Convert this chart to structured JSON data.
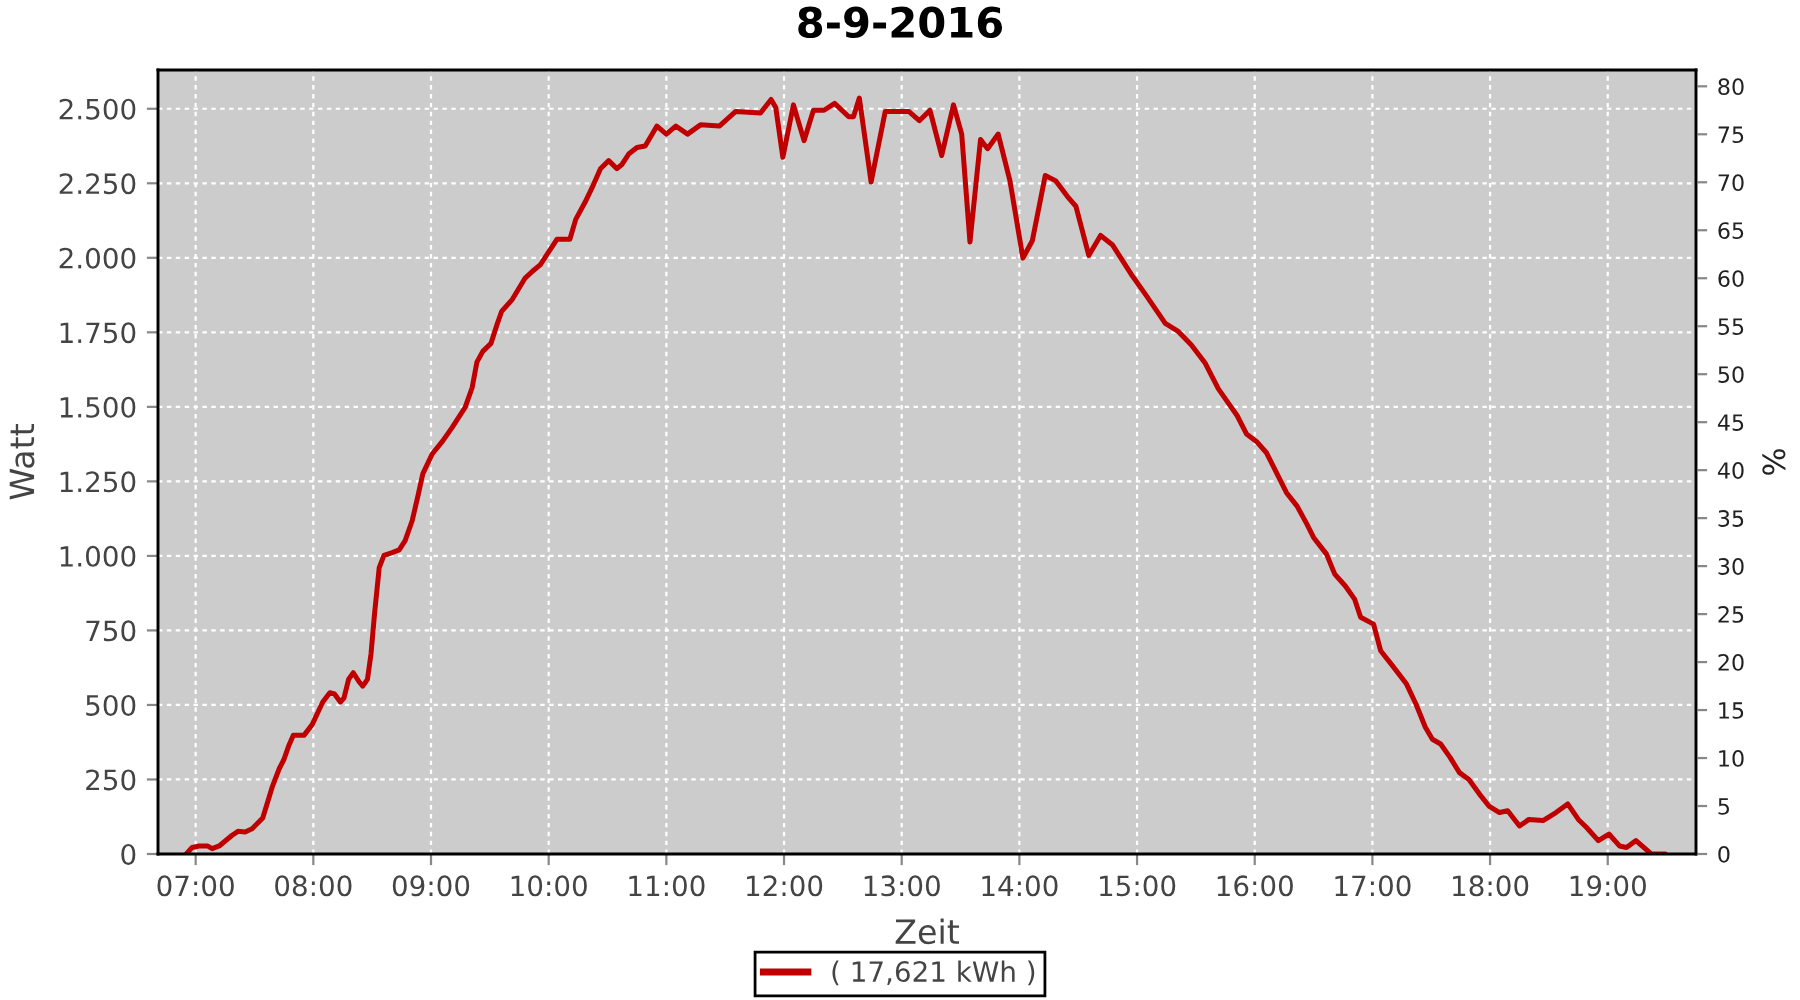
{
  "chart_data": {
    "type": "line",
    "title": "8-9-2016",
    "xlabel": "Zeit",
    "ylabel": "Watt",
    "y2label": "%",
    "xlim": [
      6.68,
      19.75
    ],
    "xticks": [
      {
        "value": 7,
        "label": "07:00"
      },
      {
        "value": 8,
        "label": "08:00"
      },
      {
        "value": 9,
        "label": "09:00"
      },
      {
        "value": 10,
        "label": "10:00"
      },
      {
        "value": 11,
        "label": "11:00"
      },
      {
        "value": 12,
        "label": "12:00"
      },
      {
        "value": 13,
        "label": "13:00"
      },
      {
        "value": 14,
        "label": "14:00"
      },
      {
        "value": 15,
        "label": "15:00"
      },
      {
        "value": 16,
        "label": "16:00"
      },
      {
        "value": 17,
        "label": "17:00"
      },
      {
        "value": 18,
        "label": "18:00"
      },
      {
        "value": 19,
        "label": "19:00"
      }
    ],
    "ylim": [
      0,
      2630
    ],
    "yticks": [
      0,
      250,
      500,
      750,
      {
        "value": 1000,
        "label": "1.000"
      },
      {
        "value": 1250,
        "label": "1.250"
      },
      {
        "value": 1500,
        "label": "1.500"
      },
      {
        "value": 1750,
        "label": "1.750"
      },
      {
        "value": 2000,
        "label": "2.000"
      },
      {
        "value": 2250,
        "label": "2.250"
      },
      {
        "value": 2500,
        "label": "2.500"
      }
    ],
    "y2lim": [
      0,
      81.7
    ],
    "y2ticks": [
      0,
      5,
      10,
      15,
      20,
      25,
      30,
      35,
      40,
      45,
      50,
      55,
      60,
      65,
      70,
      75,
      80
    ],
    "grid": true,
    "legend": "bottom",
    "line_style": "solid",
    "series": [
      {
        "name": "( 17,621 kWh )",
        "color": "#c00000",
        "x": [
          6.92,
          6.97,
          7.03,
          7.1,
          7.14,
          7.2,
          7.31,
          7.36,
          7.42,
          7.48,
          7.57,
          7.65,
          7.71,
          7.75,
          7.79,
          7.83,
          7.92,
          7.99,
          8.08,
          8.14,
          8.18,
          8.23,
          8.26,
          8.3,
          8.34,
          8.39,
          8.42,
          8.46,
          8.49,
          8.52,
          8.56,
          8.6,
          8.67,
          8.73,
          8.78,
          8.84,
          8.89,
          8.93,
          9.01,
          9.1,
          9.18,
          9.29,
          9.35,
          9.39,
          9.44,
          9.51,
          9.56,
          9.6,
          9.69,
          9.8,
          9.86,
          9.93,
          10.01,
          10.07,
          10.18,
          10.23,
          10.31,
          10.37,
          10.44,
          10.51,
          10.58,
          10.62,
          10.68,
          10.75,
          10.82,
          10.92,
          11.0,
          11.08,
          11.18,
          11.29,
          11.45,
          11.59,
          11.8,
          11.89,
          11.93,
          11.99,
          12.08,
          12.17,
          12.25,
          12.34,
          12.43,
          12.55,
          12.59,
          12.64,
          12.74,
          12.86,
          13.06,
          13.15,
          13.24,
          13.34,
          13.44,
          13.51,
          13.58,
          13.67,
          13.73,
          13.82,
          13.92,
          14.03,
          14.11,
          14.22,
          14.31,
          14.42,
          14.48,
          14.59,
          14.69,
          14.79,
          14.95,
          15.07,
          15.24,
          15.35,
          15.46,
          15.58,
          15.69,
          15.77,
          15.85,
          15.93,
          16.02,
          16.1,
          16.19,
          16.27,
          16.36,
          16.44,
          16.5,
          16.61,
          16.68,
          16.77,
          16.85,
          16.9,
          17.01,
          17.07,
          17.16,
          17.29,
          17.37,
          17.45,
          17.51,
          17.58,
          17.66,
          17.74,
          17.82,
          17.91,
          17.99,
          18.08,
          18.15,
          18.25,
          18.33,
          18.45,
          18.56,
          18.66,
          18.75,
          18.82,
          18.92,
          19.01,
          19.1,
          19.16,
          19.24,
          19.37,
          19.49
        ],
        "values": [
          0,
          22,
          27,
          27,
          18,
          27,
          63,
          76,
          74,
          85,
          121,
          224,
          286,
          317,
          362,
          398,
          398,
          434,
          510,
          541,
          537,
          510,
          523,
          586,
          608,
          577,
          563,
          586,
          671,
          805,
          961,
          1002,
          1011,
          1020,
          1051,
          1118,
          1203,
          1275,
          1342,
          1386,
          1431,
          1498,
          1565,
          1650,
          1686,
          1713,
          1775,
          1820,
          1860,
          1932,
          1954,
          1977,
          2026,
          2062,
          2062,
          2129,
          2187,
          2236,
          2299,
          2326,
          2299,
          2312,
          2348,
          2370,
          2375,
          2442,
          2415,
          2442,
          2415,
          2446,
          2442,
          2491,
          2486,
          2531,
          2504,
          2337,
          2513,
          2393,
          2495,
          2495,
          2518,
          2473,
          2473,
          2536,
          2254,
          2491,
          2491,
          2460,
          2495,
          2343,
          2513,
          2415,
          2053,
          2397,
          2366,
          2415,
          2258,
          1999,
          2057,
          2276,
          2258,
          2200,
          2173,
          2008,
          2075,
          2044,
          1945,
          1878,
          1780,
          1753,
          1708,
          1646,
          1561,
          1516,
          1471,
          1409,
          1382,
          1346,
          1275,
          1212,
          1167,
          1109,
          1062,
          1006,
          939,
          899,
          854,
          794,
          771,
          682,
          637,
          570,
          503,
          425,
          385,
          369,
          324,
          273,
          250,
          201,
          161,
          139,
          145,
          94,
          116,
          112,
          139,
          168,
          116,
          89,
          45,
          67,
          27,
          22,
          45,
          0,
          0
        ]
      }
    ]
  }
}
